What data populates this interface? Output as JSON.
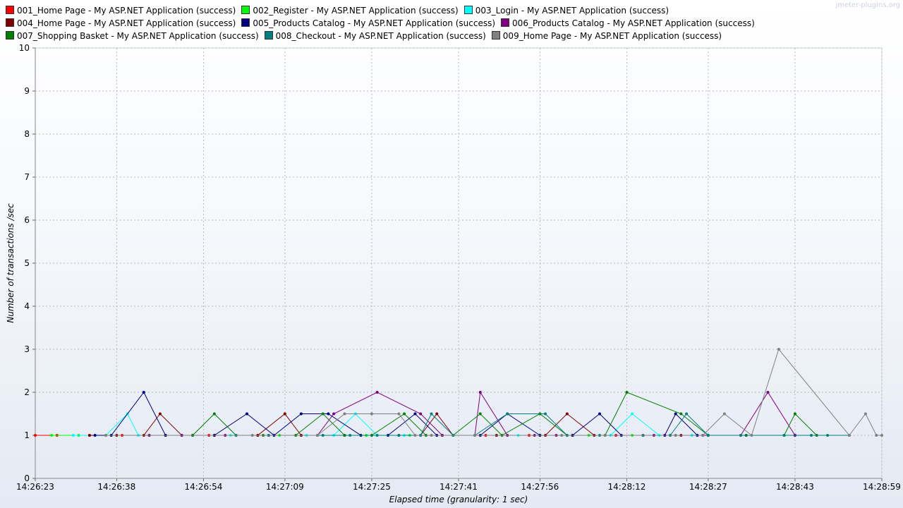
{
  "watermark": "jmeter-plugins.org",
  "chart_data": {
    "type": "line",
    "title": "",
    "xlabel": "Elapsed time (granularity: 1 sec)",
    "ylabel": "Number of transactions /sec",
    "x_unit": "time hh:mm:ss",
    "xlim": [
      "14:26:23",
      "14:28:59"
    ],
    "ylim": [
      0,
      10
    ],
    "yticks": [
      "0",
      "1",
      "2",
      "3",
      "4",
      "5",
      "6",
      "7",
      "8",
      "9",
      "10"
    ],
    "xticks": [
      "14:26:23",
      "14:26:38",
      "14:26:54",
      "14:27:09",
      "14:27:25",
      "14:27:41",
      "14:27:56",
      "14:28:12",
      "14:28:27",
      "14:28:43",
      "14:28:59"
    ],
    "grid": true,
    "legend_position": "top",
    "series": [
      {
        "name": "001_Home Page - My ASP.NET Application (success)",
        "color": "#ff0000",
        "points": [
          [
            "14:26:23",
            1
          ],
          [
            "14:26:27",
            1
          ],
          [
            "14:26:33",
            1
          ],
          [
            "14:26:36",
            1
          ],
          [
            "14:26:39",
            1
          ],
          [
            "14:26:47",
            1
          ],
          [
            "14:26:55",
            1
          ],
          [
            "14:27:04",
            1
          ],
          [
            "14:27:12",
            1
          ],
          [
            "14:27:20",
            1
          ],
          [
            "14:27:30",
            1
          ],
          [
            "14:27:38",
            1
          ],
          [
            "14:27:46",
            1
          ],
          [
            "14:27:54",
            1
          ],
          [
            "14:28:02",
            1
          ],
          [
            "14:28:10",
            1
          ],
          [
            "14:28:20",
            1
          ]
        ]
      },
      {
        "name": "002_Register - My ASP.NET Application (success)",
        "color": "#00ff00",
        "points": [
          [
            "14:26:26",
            1
          ],
          [
            "14:26:31",
            1
          ],
          [
            "14:26:37",
            1
          ],
          [
            "14:26:44",
            1
          ],
          [
            "14:26:52",
            1
          ],
          [
            "14:27:00",
            1
          ],
          [
            "14:27:08",
            1
          ],
          [
            "14:27:15",
            1
          ],
          [
            "14:27:24",
            1
          ],
          [
            "14:27:32",
            1
          ],
          [
            "14:27:40",
            1
          ],
          [
            "14:27:48",
            1
          ],
          [
            "14:27:56",
            1
          ],
          [
            "14:28:05",
            1
          ],
          [
            "14:28:13",
            1
          ],
          [
            "14:28:21",
            1
          ]
        ]
      },
      {
        "name": "003_Login - My ASP.NET Application (success)",
        "color": "#00ffff",
        "points": [
          [
            "14:26:30",
            1
          ],
          [
            "14:26:36",
            1
          ],
          [
            "14:26:40",
            1.5
          ],
          [
            "14:26:42",
            1
          ],
          [
            "14:26:50",
            1
          ],
          [
            "14:26:59",
            1
          ],
          [
            "14:27:06",
            1
          ],
          [
            "14:27:13",
            1
          ],
          [
            "14:27:18",
            1
          ],
          [
            "14:27:22",
            1.5
          ],
          [
            "14:27:26",
            1
          ],
          [
            "14:27:31",
            1
          ],
          [
            "14:27:37",
            1
          ],
          [
            "14:27:44",
            1
          ],
          [
            "14:27:52",
            1
          ],
          [
            "14:28:01",
            1
          ],
          [
            "14:28:09",
            1
          ],
          [
            "14:28:13",
            1.5
          ],
          [
            "14:28:18",
            1
          ],
          [
            "14:28:24",
            1
          ]
        ]
      },
      {
        "name": "004_Home Page - My ASP.NET Application (success)",
        "color": "#800000",
        "points": [
          [
            "14:26:33",
            1
          ],
          [
            "14:26:38",
            1
          ],
          [
            "14:26:43",
            1
          ],
          [
            "14:26:46",
            1.5
          ],
          [
            "14:26:50",
            1
          ],
          [
            "14:26:56",
            1
          ],
          [
            "14:27:04",
            1
          ],
          [
            "14:27:09",
            1.5
          ],
          [
            "14:27:12",
            1
          ],
          [
            "14:27:20",
            1
          ],
          [
            "14:27:34",
            1
          ],
          [
            "14:27:37",
            1.5
          ],
          [
            "14:27:40",
            1
          ],
          [
            "14:27:48",
            1
          ],
          [
            "14:27:57",
            1
          ],
          [
            "14:28:01",
            1.5
          ],
          [
            "14:28:06",
            1
          ],
          [
            "14:28:15",
            1
          ],
          [
            "14:28:22",
            1
          ],
          [
            "14:28:27",
            1
          ]
        ]
      },
      {
        "name": "005_Products Catalog - My ASP.NET Application (success)",
        "color": "#000080",
        "points": [
          [
            "14:26:34",
            1
          ],
          [
            "14:26:37",
            1
          ],
          [
            "14:26:43",
            2
          ],
          [
            "14:26:47",
            1
          ],
          [
            "14:26:52",
            1
          ],
          [
            "14:26:56",
            1
          ],
          [
            "14:27:02",
            1.5
          ],
          [
            "14:27:07",
            1
          ],
          [
            "14:27:12",
            1.5
          ],
          [
            "14:27:17",
            1.5
          ],
          [
            "14:27:23",
            1
          ],
          [
            "14:27:28",
            1
          ],
          [
            "14:27:33",
            1.5
          ],
          [
            "14:27:37",
            1
          ],
          [
            "14:27:45",
            1
          ],
          [
            "14:27:50",
            1.5
          ],
          [
            "14:27:56",
            1
          ],
          [
            "14:28:02",
            1
          ],
          [
            "14:28:07",
            1.5
          ],
          [
            "14:28:11",
            1
          ],
          [
            "14:28:19",
            1
          ],
          [
            "14:28:21",
            1.5
          ],
          [
            "14:28:25",
            1
          ],
          [
            "14:28:34",
            1
          ],
          [
            "14:28:43",
            1
          ]
        ]
      },
      {
        "name": "006_Products Catalog - My ASP.NET Application (success)",
        "color": "#800080",
        "points": [
          [
            "14:26:44",
            1
          ],
          [
            "14:26:50",
            1
          ],
          [
            "14:26:58",
            1
          ],
          [
            "14:27:06",
            1
          ],
          [
            "14:27:15",
            1
          ],
          [
            "14:27:18",
            1.5
          ],
          [
            "14:27:26",
            2
          ],
          [
            "14:27:34",
            1.5
          ],
          [
            "14:27:38",
            1
          ],
          [
            "14:27:44",
            1
          ],
          [
            "14:27:45",
            2
          ],
          [
            "14:27:50",
            1
          ],
          [
            "14:27:55",
            1
          ],
          [
            "14:27:59",
            1
          ],
          [
            "14:28:08",
            1
          ],
          [
            "14:28:17",
            1
          ],
          [
            "14:28:26",
            1
          ],
          [
            "14:28:33",
            1
          ],
          [
            "14:28:38",
            2
          ],
          [
            "14:28:43",
            1
          ]
        ]
      },
      {
        "name": "007_Shopping Basket - My ASP.NET Application (success)",
        "color": "#008000",
        "points": [
          [
            "14:26:52",
            1
          ],
          [
            "14:26:56",
            1.5
          ],
          [
            "14:27:00",
            1
          ],
          [
            "14:27:05",
            1
          ],
          [
            "14:27:11",
            1
          ],
          [
            "14:27:16",
            1.5
          ],
          [
            "14:27:20",
            1
          ],
          [
            "14:27:25",
            1
          ],
          [
            "14:27:31",
            1.5
          ],
          [
            "14:27:35",
            1
          ],
          [
            "14:27:40",
            1
          ],
          [
            "14:27:45",
            1.5
          ],
          [
            "14:27:49",
            1
          ],
          [
            "14:27:56",
            1.5
          ],
          [
            "14:28:01",
            1
          ],
          [
            "14:28:08",
            1
          ],
          [
            "14:28:12",
            2
          ],
          [
            "14:28:22",
            1.5
          ],
          [
            "14:28:27",
            1
          ],
          [
            "14:28:34",
            1
          ],
          [
            "14:28:41",
            1
          ],
          [
            "14:28:43",
            1.5
          ],
          [
            "14:28:47",
            1
          ]
        ]
      },
      {
        "name": "008_Checkout - My ASP.NET Application (success)",
        "color": "#008080",
        "points": [
          [
            "14:27:00",
            1
          ],
          [
            "14:27:06",
            1
          ],
          [
            "14:27:16",
            1
          ],
          [
            "14:27:21",
            1
          ],
          [
            "14:27:26",
            1
          ],
          [
            "14:27:30",
            1
          ],
          [
            "14:27:34",
            1
          ],
          [
            "14:27:36",
            1.5
          ],
          [
            "14:27:40",
            1
          ],
          [
            "14:27:44",
            1
          ],
          [
            "14:27:50",
            1.5
          ],
          [
            "14:27:57",
            1.5
          ],
          [
            "14:28:01",
            1
          ],
          [
            "14:28:07",
            1
          ],
          [
            "14:28:15",
            1
          ],
          [
            "14:28:20",
            1
          ],
          [
            "14:28:23",
            1.5
          ],
          [
            "14:28:27",
            1
          ],
          [
            "14:28:33",
            1
          ],
          [
            "14:28:41",
            1
          ],
          [
            "14:28:46",
            1
          ],
          [
            "14:28:49",
            1
          ],
          [
            "14:28:53",
            1
          ]
        ]
      },
      {
        "name": "009_Home Page - My ASP.NET Application (success)",
        "color": "#808080",
        "points": [
          [
            "14:26:36",
            1
          ],
          [
            "14:27:03",
            1
          ],
          [
            "14:27:15",
            1
          ],
          [
            "14:27:20",
            1.5
          ],
          [
            "14:27:25",
            1.5
          ],
          [
            "14:27:30",
            1.5
          ],
          [
            "14:27:33",
            1
          ],
          [
            "14:27:36",
            1
          ],
          [
            "14:27:44",
            1
          ],
          [
            "14:28:00",
            1
          ],
          [
            "14:28:08",
            1
          ],
          [
            "14:28:21",
            1
          ],
          [
            "14:28:26",
            1
          ],
          [
            "14:28:30",
            1.5
          ],
          [
            "14:28:35",
            1
          ],
          [
            "14:28:40",
            3
          ],
          [
            "14:28:53",
            1
          ],
          [
            "14:28:56",
            1.5
          ],
          [
            "14:28:58",
            1
          ],
          [
            "14:28:59",
            1
          ]
        ]
      }
    ]
  }
}
